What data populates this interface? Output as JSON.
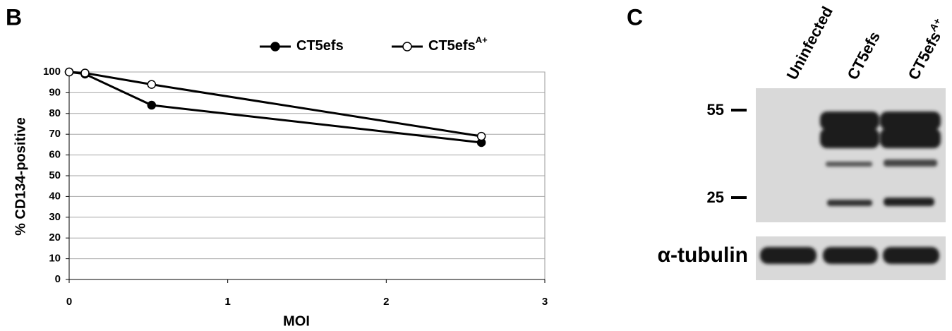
{
  "chart_data": {
    "type": "line",
    "panel_label": "B",
    "x_label": "MOI",
    "y_label": "% CD134-positive",
    "x": [
      0,
      0.1,
      0.52,
      2.6
    ],
    "series": [
      {
        "name": "CT5efs",
        "color": "#000000",
        "marker_fill": "#000000",
        "values": [
          100,
          99,
          84,
          66
        ]
      },
      {
        "name": "CT5efs",
        "name_superscript": "A+",
        "color": "#000000",
        "marker_fill": "#ffffff",
        "values": [
          100,
          99.5,
          94,
          69
        ]
      }
    ],
    "xlim": [
      0,
      3
    ],
    "xticks": [
      0,
      1,
      2,
      3
    ],
    "ylim": [
      0,
      100
    ],
    "yticks": [
      0,
      10,
      20,
      30,
      40,
      50,
      60,
      70,
      80,
      90,
      100
    ],
    "grid": true,
    "legend": "top"
  },
  "blot": {
    "panel_label": "C",
    "lanes": [
      {
        "label": "Uninfected"
      },
      {
        "label": "CT5efs"
      },
      {
        "label": "CT5efs",
        "superscript": "A+"
      }
    ],
    "markers": [
      55,
      25
    ],
    "loading_control": "α-tubulin"
  }
}
